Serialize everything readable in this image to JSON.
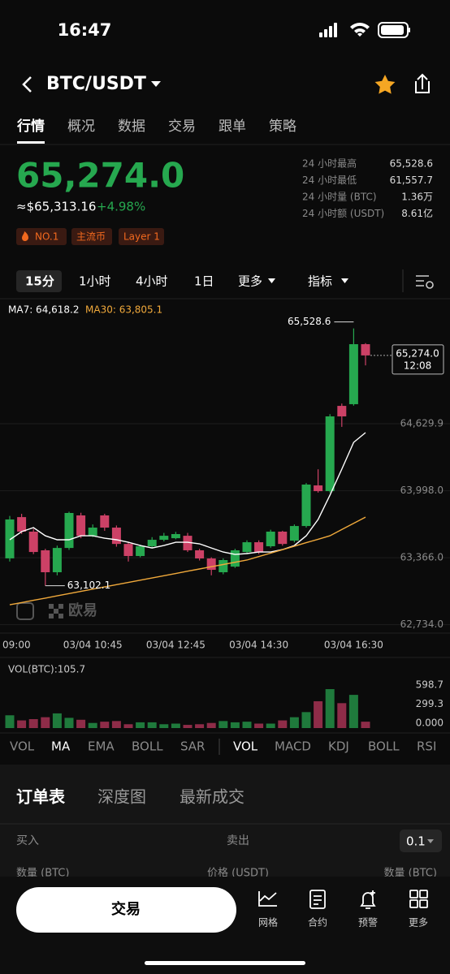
{
  "status_bar": {
    "time": "16:47"
  },
  "header": {
    "title": "BTC/USDT"
  },
  "tabs": [
    "行情",
    "概况",
    "数据",
    "交易",
    "跟单",
    "策略"
  ],
  "price": {
    "last": "65,274.0",
    "approx": "≈$65,313.16",
    "change": "+4.98%",
    "tags": [
      "NO.1",
      "主流币",
      "Layer 1"
    ]
  },
  "stats": [
    {
      "label": "24 小时最高",
      "value": "65,528.6"
    },
    {
      "label": "24 小时最低",
      "value": "61,557.7"
    },
    {
      "label": "24 小时量 (BTC)",
      "value": "1.36万"
    },
    {
      "label": "24 小时额 (USDT)",
      "value": "8.61亿"
    }
  ],
  "timeframes": [
    "15分",
    "1小时",
    "4小时",
    "1日",
    "更多",
    "指标"
  ],
  "chart_data": {
    "type": "candlestick",
    "categories": [
      "09:00",
      null,
      null,
      null,
      null,
      null,
      null,
      "03/04 10:45",
      null,
      null,
      null,
      null,
      null,
      null,
      "03/04 12:45",
      null,
      null,
      null,
      null,
      null,
      null,
      "03/04 14:30",
      null,
      null,
      null,
      null,
      null,
      null,
      null,
      "03/04 16:30",
      null
    ],
    "open": [
      63360,
      63749,
      63612,
      63436,
      63229,
      63458,
      63765,
      63573,
      63765,
      63650,
      63496,
      63382,
      63474,
      63535,
      63550,
      63573,
      63436,
      63359,
      63229,
      63282,
      63420,
      63512,
      63474,
      63612,
      63527,
      63665,
      64048,
      63994,
      64798,
      64814,
      65380
    ],
    "high": [
      63760,
      63780,
      63640,
      63450,
      63480,
      63800,
      63790,
      63680,
      63780,
      63670,
      63510,
      63490,
      63560,
      63600,
      63610,
      63600,
      63450,
      63370,
      63360,
      63450,
      63530,
      63530,
      63630,
      63620,
      63680,
      64070,
      64200,
      64720,
      64820,
      65528.6,
      65390
    ],
    "low": [
      63330,
      63590,
      63400,
      63102.1,
      63200,
      63440,
      63550,
      63560,
      63620,
      63470,
      63330,
      63370,
      63460,
      63520,
      63540,
      63420,
      63340,
      63200,
      63210,
      63270,
      63400,
      63400,
      63460,
      63480,
      63510,
      63650,
      63980,
      63980,
      64600,
      64800,
      65180
    ],
    "close": [
      63727,
      63612,
      63420,
      63229,
      63458,
      63788,
      63573,
      63650,
      63650,
      63496,
      63382,
      63474,
      63535,
      63573,
      63589,
      63436,
      63359,
      63252,
      63344,
      63436,
      63512,
      63420,
      63612,
      63496,
      63665,
      64056,
      63994,
      64699,
      64699,
      65380,
      65274.0
    ],
    "up_color": "#26a84f",
    "down_color": "#cc4166",
    "series": [
      {
        "name": "MA7: 64,618.2",
        "color": "#ffffff",
        "values": [
          63535,
          63612,
          63650,
          63573,
          63535,
          63535,
          63573,
          63573,
          63550,
          63535,
          63512,
          63481,
          63458,
          63481,
          63512,
          63512,
          63497,
          63458,
          63420,
          63397,
          63405,
          63420,
          63420,
          63443,
          63481,
          63573,
          63727,
          63956,
          64201,
          64454,
          64546
        ]
      },
      {
        "name": "MA30: 63,805.1",
        "color": "#f0a93b",
        "values": [
          62922,
          62943,
          62964,
          62985,
          63006,
          63028,
          63049,
          63070,
          63091,
          63112,
          63133,
          63154,
          63175,
          63196,
          63217,
          63239,
          63260,
          63281,
          63302,
          63323,
          63344,
          63377,
          63409,
          63442,
          63475,
          63508,
          63540,
          63573,
          63632,
          63690,
          63749
        ]
      }
    ],
    "ylim": [
      62655,
      65809
    ],
    "yticks": [
      {
        "value": 64629.9,
        "label": "64,629.9"
      },
      {
        "value": 63998.0,
        "label": "63,998.0"
      },
      {
        "value": 63366.0,
        "label": "63,366.0"
      },
      {
        "value": 62734.0,
        "label": "62,734.0"
      }
    ],
    "grid": true,
    "max_label": "65,528.6",
    "min_label": "63,102.1",
    "last_price_label": "65,274.0",
    "countdown": "12:08",
    "watermark": "欧易",
    "volume": {
      "title": "VOL(BTC):105.7",
      "values": [
        200,
        120,
        140,
        170,
        230,
        160,
        130,
        80,
        100,
        110,
        60,
        90,
        90,
        60,
        70,
        50,
        60,
        80,
        110,
        90,
        100,
        70,
        70,
        120,
        170,
        250,
        420,
        610,
        390,
        520,
        100
      ],
      "ylim": [
        0,
        750
      ],
      "yticks": [
        598.7,
        299.3,
        {
          "value": 0,
          "label": "0.000"
        }
      ]
    }
  },
  "indicator_tabs": [
    "VOL",
    "MA",
    "EMA",
    "BOLL",
    "SAR",
    "VOL",
    "MACD",
    "KDJ",
    "BOLL",
    "RSI"
  ],
  "order_book": {
    "tabs": [
      "订单表",
      "深度图",
      "最新成交"
    ],
    "buy": "买入",
    "sell": "卖出",
    "precision": "0.1",
    "columns": [
      "数量 (BTC)",
      "价格 (USDT)",
      "数量 (BTC)"
    ]
  },
  "bottom_bar": {
    "trade": "交易",
    "actions": [
      "网格",
      "合约",
      "预警",
      "更多"
    ]
  }
}
